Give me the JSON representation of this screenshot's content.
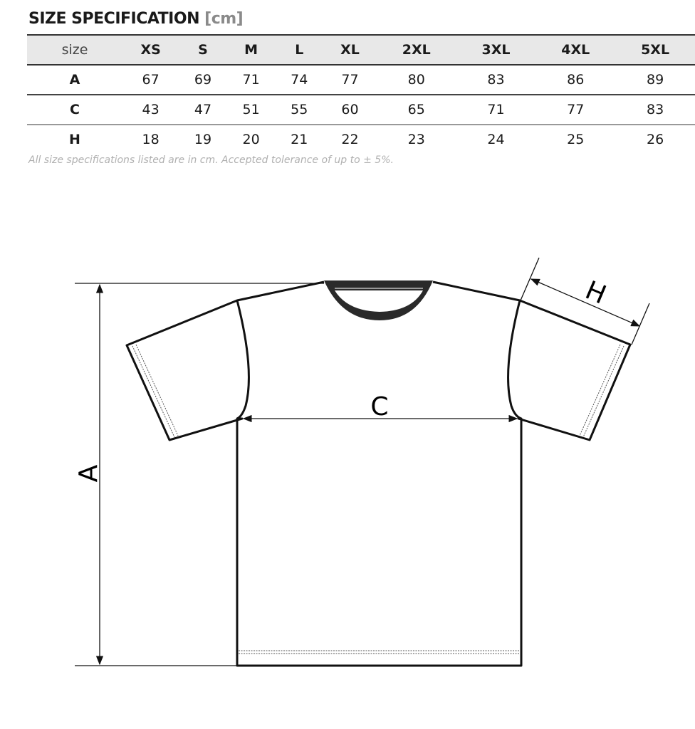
{
  "title": "SIZE SPECIFICATION",
  "unit": "[cm]",
  "table": {
    "header_label": "size",
    "sizes": [
      "XS",
      "S",
      "M",
      "L",
      "XL",
      "2XL",
      "3XL",
      "4XL",
      "5XL"
    ],
    "rows": [
      {
        "label": "A",
        "values": [
          "67",
          "69",
          "71",
          "74",
          "77",
          "80",
          "83",
          "86",
          "89"
        ]
      },
      {
        "label": "C",
        "values": [
          "43",
          "47",
          "51",
          "55",
          "60",
          "65",
          "71",
          "77",
          "83"
        ]
      },
      {
        "label": "H",
        "values": [
          "18",
          "19",
          "20",
          "21",
          "22",
          "23",
          "24",
          "25",
          "26"
        ]
      }
    ]
  },
  "note": "All size specifications listed are in cm. Accepted tolerance of up to ± 5%.",
  "diagram": {
    "label_a": "A",
    "label_c": "C",
    "label_h": "H"
  }
}
